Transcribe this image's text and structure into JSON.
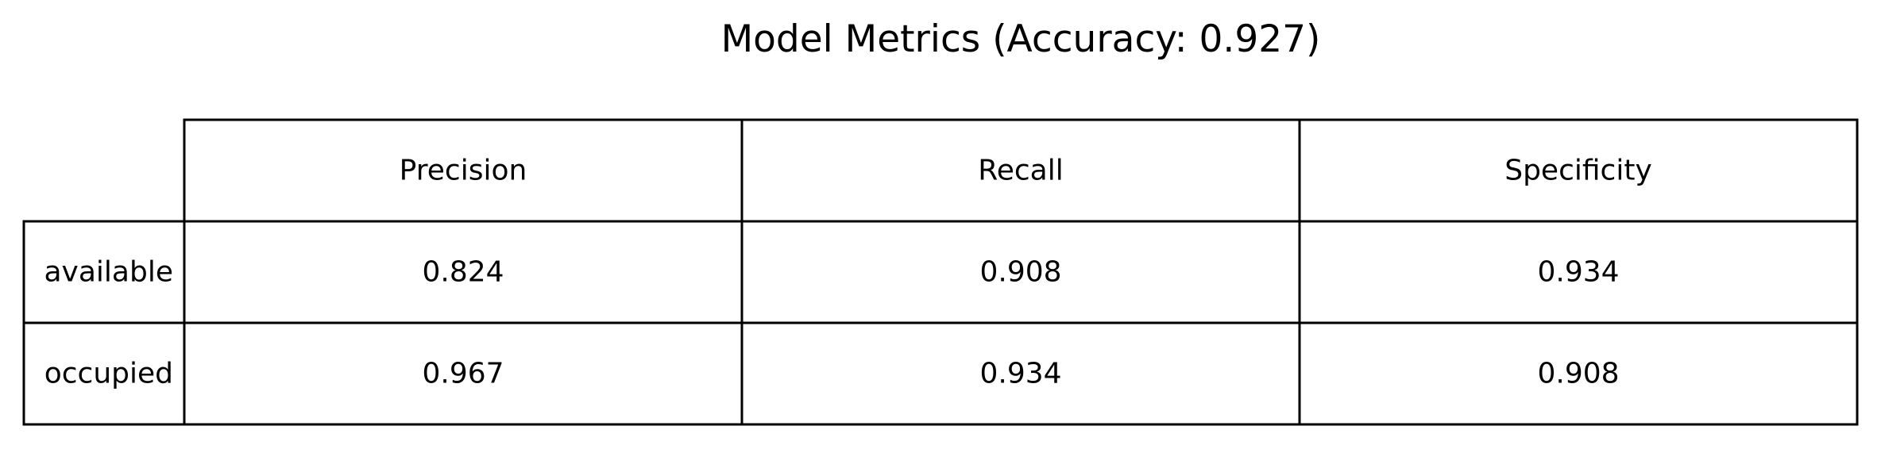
{
  "chart_data": {
    "type": "table",
    "title": "Model Metrics (Accuracy: 0.927)",
    "columns": [
      "Precision",
      "Recall",
      "Specificity"
    ],
    "rows": [
      {
        "label": "available",
        "values": [
          "0.824",
          "0.908",
          "0.934"
        ]
      },
      {
        "label": "occupied",
        "values": [
          "0.967",
          "0.934",
          "0.908"
        ]
      }
    ],
    "border_color": "#000000",
    "background": "#ffffff"
  }
}
